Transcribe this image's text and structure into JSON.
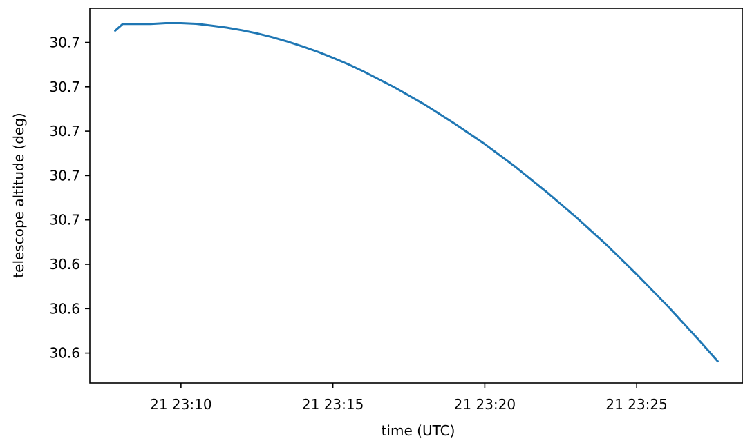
{
  "chart_data": {
    "type": "line",
    "title": "",
    "xlabel": "time (UTC)",
    "ylabel": "telescope altitude (deg)",
    "xlim": [
      "21 23:07:00",
      "21 23:28:30"
    ],
    "ylim": [
      30.5745,
      30.7434
    ],
    "grid": false,
    "legend": "none",
    "x_ticks": [
      {
        "value": "21 23:10",
        "minute": 10
      },
      {
        "value": "21 23:15",
        "minute": 15
      },
      {
        "value": "21 23:20",
        "minute": 20
      },
      {
        "value": "21 23:25",
        "minute": 25
      }
    ],
    "y_ticks": [
      {
        "label": "30.7",
        "value": 30.728
      },
      {
        "label": "30.7",
        "value": 30.708
      },
      {
        "label": "30.7",
        "value": 30.688
      },
      {
        "label": "30.7",
        "value": 30.668
      },
      {
        "label": "30.7",
        "value": 30.648
      },
      {
        "label": "30.6",
        "value": 30.628
      },
      {
        "label": "30.6",
        "value": 30.608
      },
      {
        "label": "30.6",
        "value": 30.588
      }
    ],
    "series": [
      {
        "color": "#1f77b4",
        "points": [
          {
            "x": "21 23:07:50",
            "y": 30.7333
          },
          {
            "x": "21 23:08:05",
            "y": 30.7363
          },
          {
            "x": "21 23:08:30",
            "y": 30.7363
          },
          {
            "x": "21 23:09:00",
            "y": 30.7363
          },
          {
            "x": "21 23:09:30",
            "y": 30.7367
          },
          {
            "x": "21 23:10:00",
            "y": 30.7367
          },
          {
            "x": "21 23:10:30",
            "y": 30.7364
          },
          {
            "x": "21 23:11:00",
            "y": 30.7356
          },
          {
            "x": "21 23:11:30",
            "y": 30.7347
          },
          {
            "x": "21 23:12:00",
            "y": 30.7335
          },
          {
            "x": "21 23:12:30",
            "y": 30.7321
          },
          {
            "x": "21 23:13:00",
            "y": 30.7304
          },
          {
            "x": "21 23:13:30",
            "y": 30.7284
          },
          {
            "x": "21 23:14:00",
            "y": 30.7262
          },
          {
            "x": "21 23:14:30",
            "y": 30.7238
          },
          {
            "x": "21 23:15:00",
            "y": 30.7211
          },
          {
            "x": "21 23:15:30",
            "y": 30.7182
          },
          {
            "x": "21 23:16:00",
            "y": 30.715
          },
          {
            "x": "21 23:17:00",
            "y": 30.708
          },
          {
            "x": "21 23:18:00",
            "y": 30.7002
          },
          {
            "x": "21 23:19:00",
            "y": 30.6915
          },
          {
            "x": "21 23:20:00",
            "y": 30.6822
          },
          {
            "x": "21 23:21:00",
            "y": 30.672
          },
          {
            "x": "21 23:22:00",
            "y": 30.661
          },
          {
            "x": "21 23:23:00",
            "y": 30.6493
          },
          {
            "x": "21 23:24:00",
            "y": 30.6369
          },
          {
            "x": "21 23:25:00",
            "y": 30.6235
          },
          {
            "x": "21 23:26:00",
            "y": 30.6095
          },
          {
            "x": "21 23:27:00",
            "y": 30.5946
          },
          {
            "x": "21 23:27:40",
            "y": 30.5843
          }
        ]
      }
    ]
  }
}
